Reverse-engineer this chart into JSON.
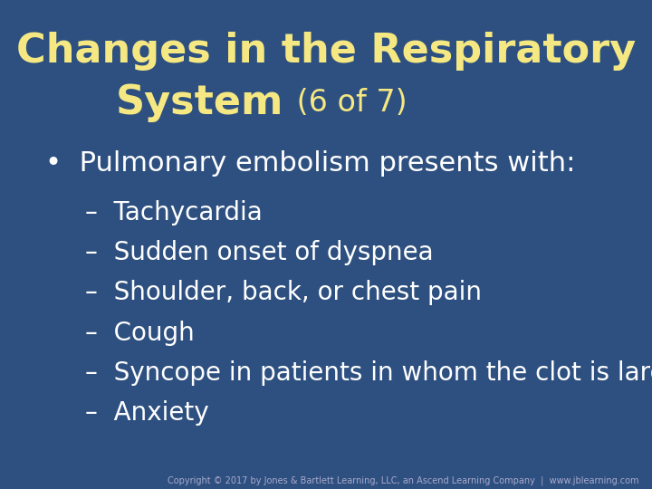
{
  "background_color": "#2E5080",
  "title_line1": "Changes in the Respiratory",
  "title_line2_bold": "System",
  "title_line2_suffix": " (6 of 7)",
  "title_color": "#F5E882",
  "title_fontsize": 32,
  "title_suffix_fontsize": 24,
  "bullet_text": "•  Pulmonary embolism presents with:",
  "bullet_color": "#FFFFFF",
  "bullet_fontsize": 22,
  "dash_items": [
    "Tachycardia",
    "Sudden onset of dyspnea",
    "Shoulder, back, or chest pain",
    "Cough",
    "Syncope in patients in whom the clot is larger",
    "Anxiety"
  ],
  "dash_color": "#FFFFFF",
  "dash_fontsize": 20,
  "copyright_text": "Copyright © 2017 by Jones & Bartlett Learning, LLC, an Ascend Learning Company  |  www.jblearning.com",
  "copyright_color": "#AAAACC",
  "copyright_fontsize": 7
}
